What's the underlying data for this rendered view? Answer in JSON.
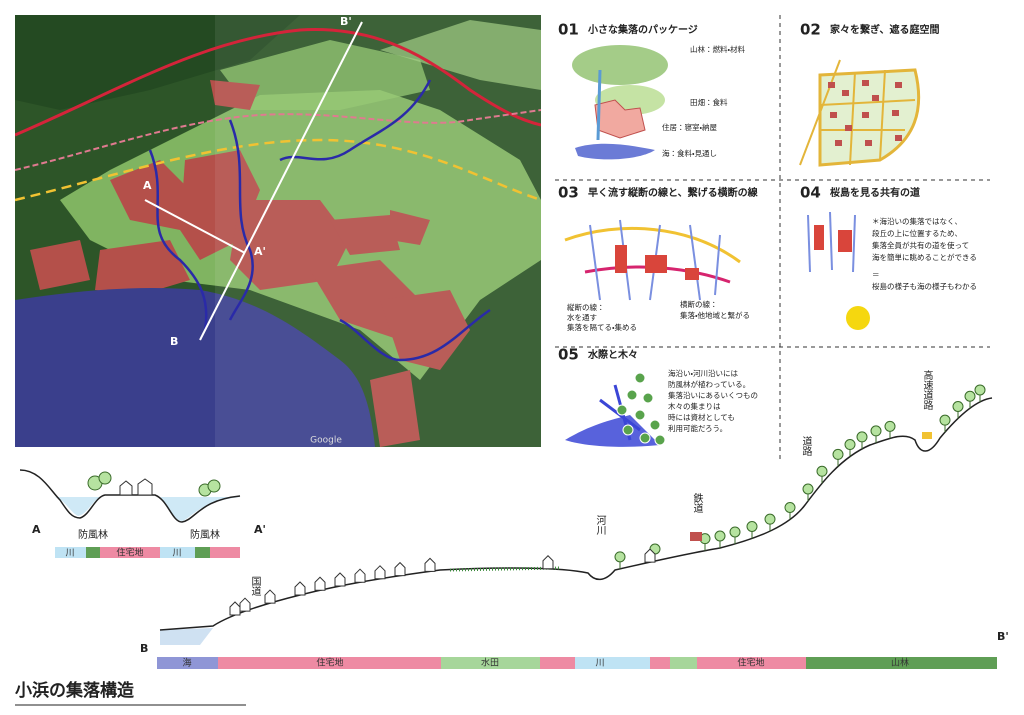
{
  "map": {
    "labels": {
      "b_prime": "B'",
      "a": "A",
      "a_prime": "A'",
      "b": "B"
    },
    "credit": "Google"
  },
  "panels": [
    {
      "number": "01",
      "title": "小さな集落のパッケージ",
      "labels": [
        "山林：燃料・材料",
        "田畑：食料",
        "住居：寝室・納屋",
        "海：食料・見通し"
      ]
    },
    {
      "number": "02",
      "title": "家々を繋ぎ、遮る庭空間"
    },
    {
      "number": "03",
      "title": "早く流す縦断の線と、繋げる横断の線",
      "notes": [
        [
          "縦断の線：",
          "水を通す",
          "集落を隔てる・集める"
        ],
        [
          "横断の線：",
          "集落・他地域と繋がる"
        ]
      ]
    },
    {
      "number": "04",
      "title": "桜島を見る共有の道",
      "notes": [
        "＊海沿いの集落ではなく、",
        "段丘の上に位置するため、",
        "集落全員が共有の道を使って",
        "海を簡単に眺めることができる",
        "＝",
        "桜島の様子も海の様子もわかる"
      ]
    },
    {
      "number": "05",
      "title": "水際と木々",
      "notes": [
        "海沿い・河川沿いには",
        "防風林が植わっている。",
        "集落沿いにあるいくつもの",
        "木々の集まりは",
        "時には資材としても",
        "利用可能だろう。"
      ]
    }
  ],
  "section_a": {
    "start": "A",
    "end": "A'",
    "labels": [
      "防風林",
      "防風林"
    ],
    "zones": [
      "川",
      "住宅地",
      "川"
    ]
  },
  "section_b": {
    "start": "B",
    "end": "B'",
    "labels": [
      "国道",
      "河川",
      "鉄道",
      "道路",
      "高速道路"
    ],
    "zones": [
      "海",
      "住宅地",
      "水田",
      "川",
      "住宅地",
      "山林"
    ]
  },
  "title": "小浜の集落構造"
}
